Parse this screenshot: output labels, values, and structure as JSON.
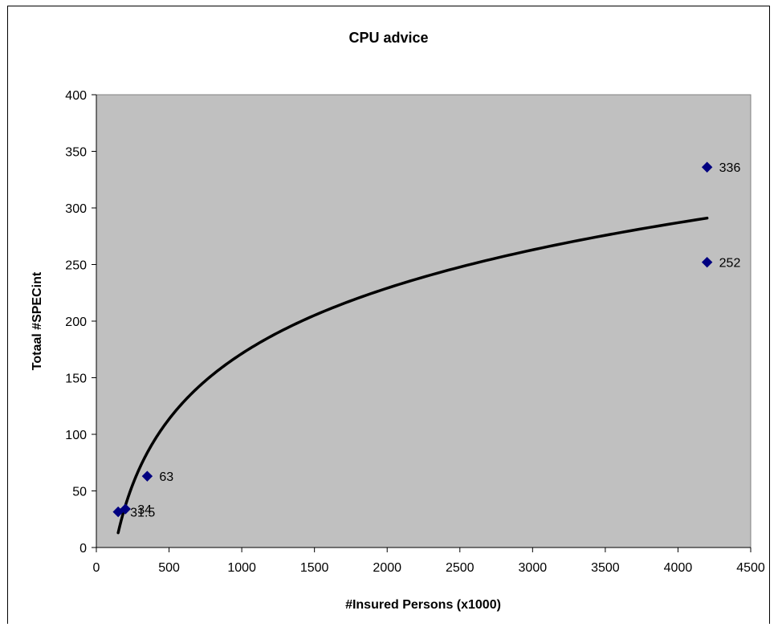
{
  "chart_data": {
    "type": "scatter",
    "title": "CPU advice",
    "xlabel": "#Insured Persons (x1000)",
    "ylabel": "Totaal #SPECint",
    "xlim": [
      0,
      4500
    ],
    "ylim": [
      0,
      400
    ],
    "x_ticks": [
      0,
      500,
      1000,
      1500,
      2000,
      2500,
      3000,
      3500,
      4000,
      4500
    ],
    "y_ticks": [
      0,
      50,
      100,
      150,
      200,
      250,
      300,
      350,
      400
    ],
    "grid": false,
    "legend": "none",
    "plot_background": "#c0c0c0",
    "series": [
      {
        "marker": "diamond",
        "color": "#000080",
        "points": [
          {
            "x": 150,
            "y": 31.5,
            "label": "31.5"
          },
          {
            "x": 200,
            "y": 34,
            "label": "34"
          },
          {
            "x": 350,
            "y": 63,
            "label": "63"
          },
          {
            "x": 4200,
            "y": 336,
            "label": "336"
          },
          {
            "x": 4200,
            "y": 252,
            "label": "252"
          }
        ]
      }
    ],
    "trendline": {
      "type": "logarithmic",
      "color": "#000000",
      "x_range": [
        150,
        4200
      ],
      "y_at_start": 13,
      "y_at_end": 291
    }
  }
}
